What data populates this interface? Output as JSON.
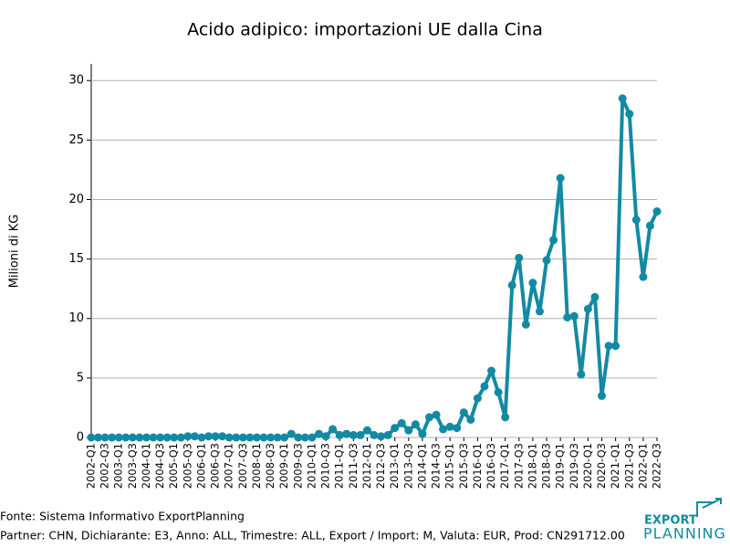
{
  "chart_data": {
    "type": "line",
    "title": "Acido adipico: importazioni UE dalla Cina",
    "y_label": "Milioni di KG",
    "color": "#138aa3",
    "grid": true,
    "categories": [
      "2002-Q1",
      null,
      "2002-Q3",
      null,
      "2003-Q1",
      null,
      "2003-Q3",
      null,
      "2004-Q1",
      null,
      "2004-Q3",
      null,
      "2005-Q1",
      null,
      "2005-Q3",
      null,
      "2006-Q1",
      null,
      "2006-Q3",
      null,
      "2007-Q1",
      null,
      "2007-Q3",
      null,
      "2008-Q1",
      null,
      "2008-Q3",
      null,
      "2009-Q1",
      null,
      "2009-Q3",
      null,
      "2010-Q1",
      null,
      "2010-Q3",
      null,
      "2011-Q1",
      null,
      "2011-Q3",
      null,
      "2012-Q1",
      null,
      "2012-Q3",
      null,
      "2013-Q1",
      null,
      "2013-Q3",
      null,
      "2014-Q1",
      null,
      "2014-Q3",
      null,
      "2015-Q1",
      null,
      "2015-Q3",
      null,
      "2016-Q1",
      null,
      "2016-Q3",
      null,
      "2017-Q1",
      null,
      "2017-Q3",
      null,
      "2018-Q1",
      null,
      "2018-Q3",
      null,
      "2019-Q1",
      null,
      "2019-Q3",
      null,
      "2020-Q1",
      null,
      "2020-Q3",
      null,
      "2021-Q1",
      null,
      "2021-Q3",
      null,
      "2022-Q1",
      null,
      "2022-Q3"
    ],
    "values": [
      0,
      0,
      0,
      0,
      0,
      0,
      0,
      0,
      0,
      0,
      0,
      0,
      0,
      0,
      0.1,
      0.1,
      0,
      0.1,
      0.1,
      0.1,
      0,
      0,
      0,
      0,
      0,
      0,
      0,
      0,
      0,
      0.3,
      0,
      0,
      0,
      0.3,
      0.1,
      0.7,
      0.2,
      0.3,
      0.2,
      0.2,
      0.6,
      0.2,
      0.1,
      0.2,
      0.8,
      1.2,
      0.6,
      1.1,
      0.3,
      1.7,
      1.9,
      0.7,
      0.9,
      0.8,
      2.1,
      1.5,
      3.3,
      4.3,
      5.6,
      3.8,
      1.7,
      12.8,
      15.1,
      9.5,
      13.0,
      10.6,
      14.9,
      16.6,
      21.8,
      10.1,
      10.2,
      5.3,
      10.8,
      11.8,
      3.5,
      7.7,
      7.7,
      28.5,
      27.2,
      18.3,
      13.5,
      17.8,
      19.0
    ],
    "ylim": [
      0,
      31.4
    ],
    "yticks": [
      0,
      5,
      10,
      15,
      20,
      25,
      30
    ]
  },
  "footer": {
    "source": "Fonte: Sistema Informativo ExportPlanning",
    "filters": "Partner: CHN, Dichiarante: E3, Anno: ALL, Trimestre: ALL, Export / Import: M, Valuta: EUR, Prod: CN291712.00"
  },
  "logo": {
    "line1": "EXPORT",
    "line2": "PLANNING"
  }
}
